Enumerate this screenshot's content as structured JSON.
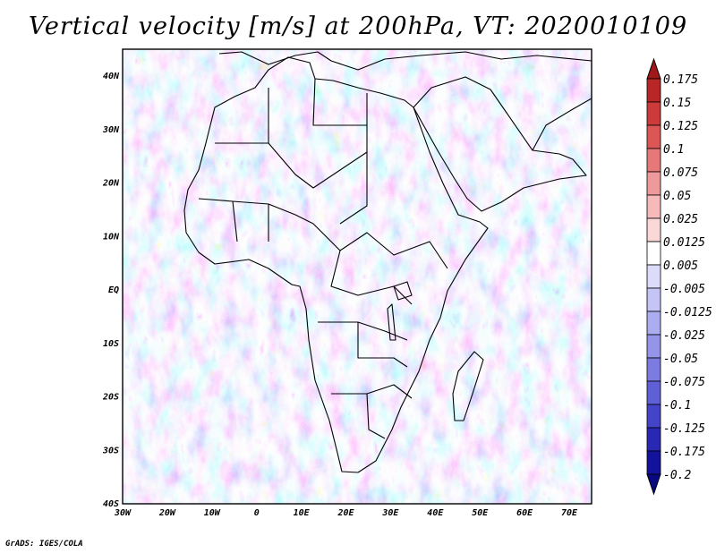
{
  "title": "Vertical velocity [m/s] at 200hPa, VT: 2020010109",
  "credit": "GrADS: IGES/COLA",
  "map": {
    "lon_range": [
      -30,
      75
    ],
    "lat_range": [
      -40,
      45
    ],
    "x_ticks": [
      "30W",
      "20W",
      "10W",
      "0",
      "10E",
      "20E",
      "30E",
      "40E",
      "50E",
      "60E",
      "70E"
    ],
    "y_ticks": [
      "40N",
      "30N",
      "20N",
      "10N",
      "EQ",
      "10S",
      "20S",
      "30S",
      "40S"
    ],
    "background_color": "#dcdcf4",
    "feature_labels": []
  },
  "colorbar": {
    "labels": [
      "0.175",
      "0.15",
      "0.125",
      "0.1",
      "0.075",
      "0.05",
      "0.025",
      "0.0125",
      "0.005",
      "-0.005",
      "-0.0125",
      "-0.025",
      "-0.05",
      "-0.075",
      "-0.1",
      "-0.125",
      "-0.175",
      "-0.2"
    ],
    "colors": [
      "#a01818",
      "#b82626",
      "#cc3a3a",
      "#dc5656",
      "#e67878",
      "#ef9a9a",
      "#f6baba",
      "#fbd8d8",
      "#ffffff",
      "#dcdcfa",
      "#c4c4f6",
      "#acacf0",
      "#9494e8",
      "#7c7ce0",
      "#6060d6",
      "#4444c8",
      "#2828b4",
      "#12129c",
      "#080880"
    ]
  }
}
